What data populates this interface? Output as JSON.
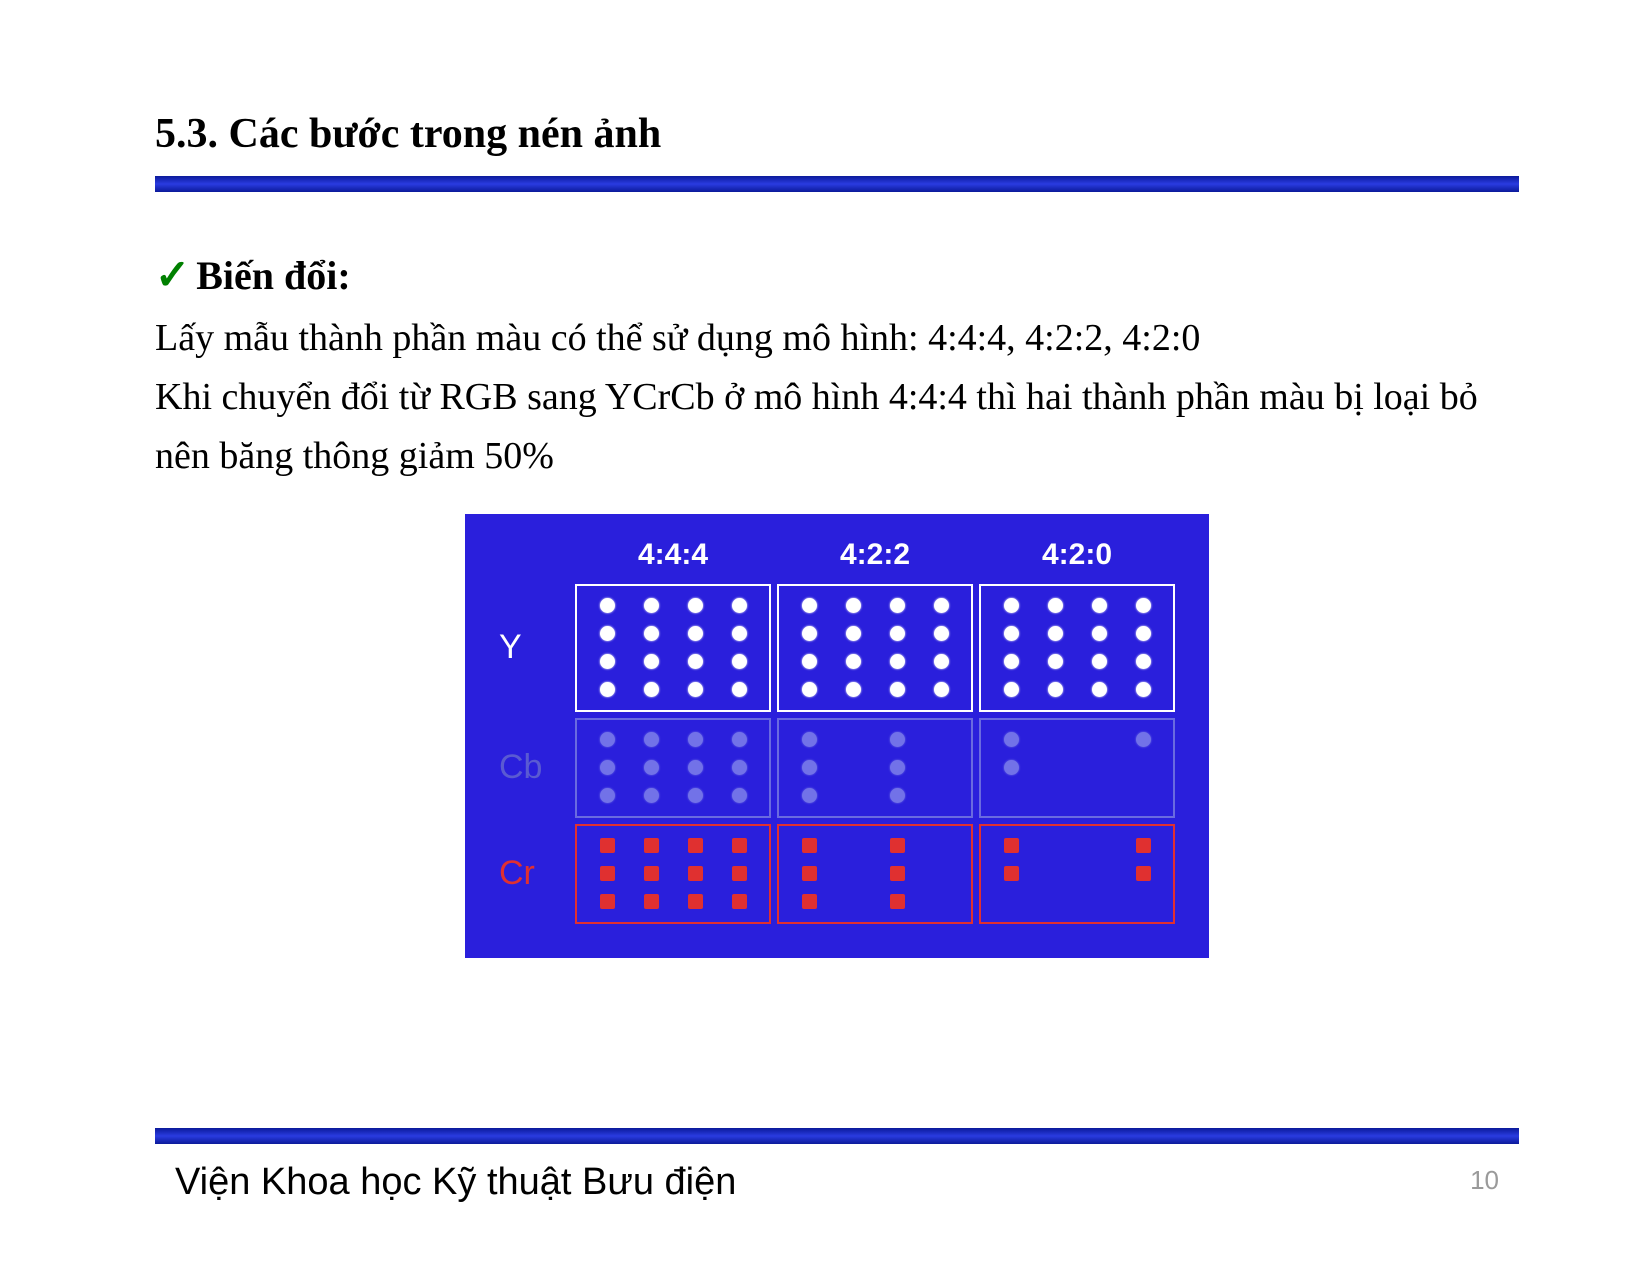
{
  "heading": "5.3. Các bước trong nén ảnh",
  "subhead": "Biến đổi:",
  "body_line1": "Lấy mẫu thành phần màu có thể sử dụng mô hình: 4:4:4, 4:2:2, 4:2:0",
  "body_line2": "Khi chuyển đổi từ RGB sang YCrCb ở mô hình 4:4:4 thì hai thành phần màu bị loại bỏ nên băng thông giảm 50%",
  "footer": "Viện Khoa học Kỹ thuật Bưu điện",
  "page_number": "10",
  "diagram": {
    "background_color": "#2a1fdc",
    "columns": [
      "4:4:4",
      "4:2:2",
      "4:2:0"
    ],
    "rows": [
      {
        "label": "Y",
        "class": "y",
        "grid_rows": 4,
        "color": "#ffffff"
      },
      {
        "label": "Cb",
        "class": "cb",
        "grid_rows": 3,
        "color": "#7272e8"
      },
      {
        "label": "Cr",
        "class": "cr",
        "grid_rows": 3,
        "color": "#e03030"
      }
    ],
    "patterns": {
      "Y": {
        "444": "1111111111111111",
        "422": "1111111111111111",
        "420": "1111111111111111"
      },
      "Cb": {
        "444": "111111111111",
        "422": "101010101010",
        "420": "100110000000"
      },
      "Cr": {
        "444": "111111111111",
        "422": "101010101010",
        "420": "100110010000"
      }
    },
    "col_keys": [
      "444",
      "422",
      "420"
    ]
  },
  "colors": {
    "rule_gradient_dark": "#0b1a9a",
    "rule_gradient_light": "#2a3be0",
    "check": "#008000",
    "page_num": "#9a9a9a"
  }
}
